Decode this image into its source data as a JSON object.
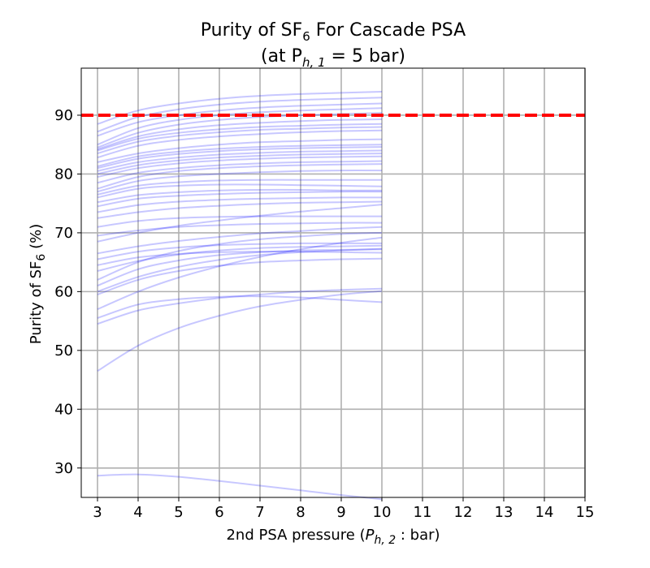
{
  "chart_data": {
    "type": "line",
    "title": {
      "line1_prefix": "Purity of SF",
      "line1_sub": "6",
      "line1_suffix": " For Cascade PSA",
      "line2": "(at P",
      "line2_sub": "h, 1",
      "line2_suffix": " = 5 bar)"
    },
    "xlabel": {
      "prefix": "2nd PSA pressure (",
      "var": "P",
      "sub": "h, 2",
      "suffix": " : bar)"
    },
    "ylabel": {
      "prefix": "Purity of SF",
      "sub": "6",
      "suffix": " (%)"
    },
    "xlim": [
      2.6,
      15
    ],
    "ylim": [
      25,
      98
    ],
    "xticks": [
      3,
      4,
      5,
      6,
      7,
      8,
      9,
      10,
      11,
      12,
      13,
      14,
      15
    ],
    "yticks": [
      30,
      40,
      50,
      60,
      70,
      80,
      90
    ],
    "grid": true,
    "colors": {
      "series": "#0000ff",
      "threshold": "#ff0000",
      "grid": "#b0b0b0"
    },
    "threshold": {
      "y": 90,
      "style": "dashed",
      "color": "#ff0000"
    },
    "x": [
      3,
      4,
      5,
      6,
      7,
      8,
      9,
      10
    ],
    "series": [
      {
        "values": [
          88.5,
          90.8,
          92.0,
          92.8,
          93.3,
          93.6,
          93.8,
          94.0
        ]
      },
      {
        "values": [
          87.2,
          89.7,
          91.0,
          91.8,
          92.3,
          92.6,
          92.8,
          93.0
        ]
      },
      {
        "values": [
          86.5,
          88.8,
          90.0,
          90.8,
          91.3,
          91.6,
          91.8,
          92.0
        ]
      },
      {
        "values": [
          85.0,
          87.8,
          89.2,
          90.0,
          90.5,
          90.8,
          91.0,
          91.2
        ]
      },
      {
        "values": [
          84.5,
          87.0,
          88.4,
          89.2,
          89.7,
          90.0,
          90.2,
          90.4
        ]
      },
      {
        "values": [
          84.2,
          86.4,
          87.6,
          88.3,
          88.7,
          89.0,
          89.2,
          89.3
        ]
      },
      {
        "values": [
          84.0,
          86.0,
          87.0,
          87.6,
          88.0,
          88.2,
          88.4,
          88.5
        ]
      },
      {
        "values": [
          83.5,
          85.5,
          86.5,
          87.1,
          87.5,
          87.7,
          87.9,
          88.0
        ]
      },
      {
        "values": [
          82.8,
          84.8,
          85.8,
          86.4,
          86.8,
          87.1,
          87.3,
          87.4
        ]
      },
      {
        "values": [
          82.0,
          83.5,
          84.4,
          85.0,
          85.4,
          85.6,
          85.8,
          85.9
        ]
      },
      {
        "values": [
          81.3,
          83.0,
          83.8,
          84.3,
          84.6,
          84.8,
          84.9,
          85.0
        ]
      },
      {
        "values": [
          81.0,
          82.6,
          83.4,
          83.9,
          84.2,
          84.4,
          84.5,
          84.6
        ]
      },
      {
        "values": [
          80.5,
          82.0,
          82.8,
          83.3,
          83.6,
          83.8,
          83.9,
          84.0
        ]
      },
      {
        "values": [
          80.0,
          81.5,
          82.3,
          82.8,
          83.1,
          83.3,
          83.4,
          83.5
        ]
      },
      {
        "values": [
          79.5,
          81.0,
          81.8,
          82.3,
          82.6,
          82.8,
          82.9,
          83.0
        ]
      },
      {
        "values": [
          78.5,
          80.2,
          81.0,
          81.5,
          81.8,
          82.0,
          82.1,
          82.2
        ]
      },
      {
        "values": [
          77.5,
          79.5,
          80.5,
          81.0,
          81.3,
          81.5,
          81.6,
          81.7
        ]
      },
      {
        "values": [
          77.0,
          78.8,
          79.6,
          80.0,
          80.3,
          80.5,
          80.6,
          80.6
        ]
      },
      {
        "values": [
          76.5,
          78.0,
          78.6,
          78.9,
          79.0,
          79.0,
          79.0,
          79.0
        ]
      },
      {
        "values": [
          76.0,
          77.5,
          78.0,
          78.2,
          78.2,
          78.1,
          78.0,
          77.9
        ]
      },
      {
        "values": [
          75.2,
          76.4,
          76.9,
          77.2,
          77.3,
          77.3,
          77.2,
          77.2
        ]
      },
      {
        "values": [
          74.5,
          75.8,
          76.3,
          76.6,
          76.8,
          76.9,
          77.0,
          77.0
        ]
      },
      {
        "values": [
          73.5,
          74.7,
          75.3,
          75.6,
          75.8,
          75.9,
          76.0,
          76.0
        ]
      },
      {
        "values": [
          72.5,
          73.5,
          74.2,
          74.6,
          74.9,
          75.1,
          75.2,
          75.3
        ]
      },
      {
        "values": [
          71.0,
          72.0,
          72.5,
          72.7,
          72.8,
          72.8,
          72.8,
          72.8
        ]
      },
      {
        "values": [
          69.5,
          70.4,
          71.0,
          71.3,
          71.5,
          71.6,
          71.7,
          71.7
        ]
      },
      {
        "values": [
          68.5,
          70.0,
          71.2,
          72.1,
          72.9,
          73.6,
          74.2,
          74.8
        ]
      },
      {
        "values": [
          66.5,
          67.7,
          68.6,
          69.3,
          69.9,
          70.3,
          70.7,
          71.0
        ]
      },
      {
        "values": [
          65.5,
          66.8,
          67.5,
          67.9,
          68.1,
          68.2,
          68.2,
          68.2
        ]
      },
      {
        "values": [
          64.5,
          65.8,
          66.4,
          66.7,
          66.8,
          66.8,
          66.7,
          66.6
        ]
      },
      {
        "values": [
          63.5,
          65.2,
          66.3,
          67.0,
          67.4,
          67.6,
          67.7,
          67.8
        ]
      },
      {
        "values": [
          62.0,
          65.0,
          66.9,
          68.1,
          68.9,
          69.4,
          69.8,
          70.0
        ]
      },
      {
        "values": [
          61.0,
          63.8,
          65.3,
          66.2,
          66.7,
          67.0,
          67.1,
          67.2
        ]
      },
      {
        "values": [
          60.0,
          62.5,
          64.2,
          65.4,
          66.2,
          66.7,
          67.0,
          67.3
        ]
      },
      {
        "values": [
          59.5,
          62.0,
          63.5,
          64.4,
          65.0,
          65.3,
          65.5,
          65.6
        ]
      },
      {
        "values": [
          57.0,
          60.0,
          62.4,
          64.3,
          65.9,
          67.2,
          68.3,
          69.2
        ]
      },
      {
        "values": [
          55.5,
          57.8,
          58.7,
          59.1,
          59.2,
          59.0,
          58.6,
          58.2
        ]
      },
      {
        "values": [
          54.5,
          56.8,
          58.0,
          58.9,
          59.5,
          60.0,
          60.3,
          60.5
        ]
      },
      {
        "values": [
          46.5,
          50.8,
          53.8,
          55.9,
          57.5,
          58.6,
          59.5,
          60.1
        ]
      },
      {
        "values": [
          28.7,
          28.9,
          28.5,
          27.8,
          27.0,
          26.2,
          25.4,
          24.7
        ]
      }
    ]
  }
}
